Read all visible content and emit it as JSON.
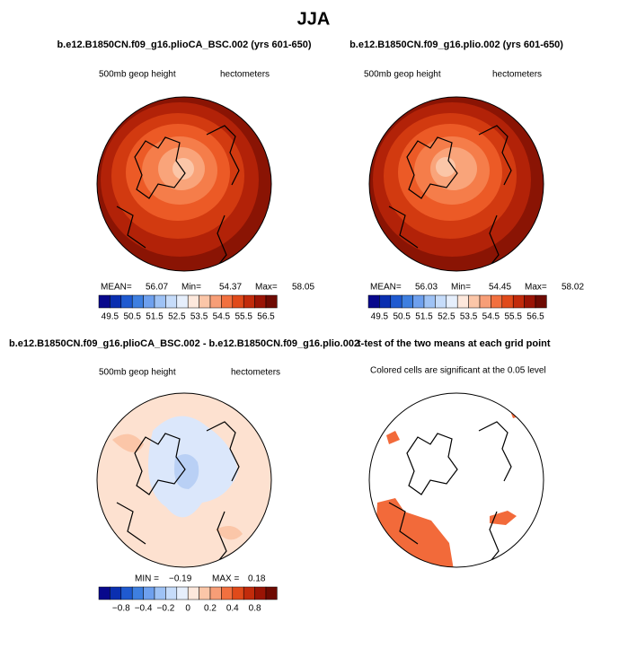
{
  "title": "JJA",
  "colorbar_colors": [
    "#08088c",
    "#0a2fb0",
    "#1f5ad0",
    "#3e7fe0",
    "#6ea0ee",
    "#9ec2f5",
    "#c6dcfa",
    "#e6effc",
    "#fde8dc",
    "#fbc6a8",
    "#f79e77",
    "#f2703f",
    "#e04a1a",
    "#c22b0b",
    "#9a1405",
    "#6e0a02"
  ],
  "panels": [
    {
      "title": "b.e12.B1850CN.f09_g16.plioCA_BSC.002 (yrs 601-650)",
      "left_label": "500mb geop height",
      "right_label": "hectometers",
      "stats": [
        "MEAN=",
        "56.07",
        "Min=",
        "54.37",
        "Max=",
        "58.05"
      ],
      "colorbar_labels": [
        "49.5",
        "50.5",
        "51.5",
        "52.5",
        "53.5",
        "54.5",
        "55.5",
        "56.5"
      ]
    },
    {
      "title": "b.e12.B1850CN.f09_g16.plio.002 (yrs 601-650)",
      "left_label": "500mb geop height",
      "right_label": "hectometers",
      "stats": [
        "MEAN=",
        "56.03",
        "Min=",
        "54.45",
        "Max=",
        "58.02"
      ],
      "colorbar_labels": [
        "49.5",
        "50.5",
        "51.5",
        "52.5",
        "53.5",
        "54.5",
        "55.5",
        "56.5"
      ]
    },
    {
      "title": "b.e12.B1850CN.f09_g16.plioCA_BSC.002 - b.e12.B1850CN.f09_g16.plio.002",
      "left_label": "500mb geop height",
      "right_label": "hectometers",
      "stats": [
        "MIN =",
        "−0.19",
        "MAX =",
        "0.18"
      ],
      "colorbar_labels": [
        "−0.8",
        "−0.4",
        "−0.2",
        "0",
        "0.2",
        "0.4",
        "0.8"
      ]
    },
    {
      "title": "t-test of the two means at each grid point",
      "left_label": "Colored cells are significant at the 0.05 level"
    }
  ]
}
